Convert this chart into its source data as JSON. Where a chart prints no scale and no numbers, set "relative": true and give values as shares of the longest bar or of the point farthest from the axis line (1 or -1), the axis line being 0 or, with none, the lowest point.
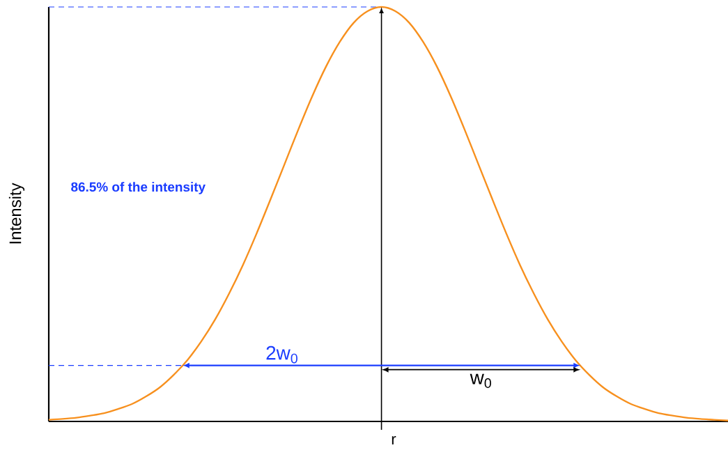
{
  "chart_data": {
    "type": "line",
    "relative": true,
    "xlabel": "r",
    "ylabel": "Intensity",
    "categories": [
      null,
      null,
      null,
      null,
      null,
      null,
      null,
      null,
      null,
      null,
      null,
      null,
      null,
      null,
      null,
      null,
      null,
      null,
      null,
      null,
      null,
      null,
      null,
      null,
      null,
      null,
      null,
      null,
      null,
      null,
      null,
      null,
      null,
      null,
      null,
      null,
      null,
      null,
      null,
      null,
      null,
      null,
      null,
      null,
      null,
      null,
      null,
      null,
      null,
      null
    ],
    "series": [
      {
        "color": "#f7901e",
        "values": [
          0.004,
          0.006,
          0.009,
          0.014,
          0.02,
          0.03,
          0.042,
          0.06,
          0.082,
          0.112,
          0.148,
          0.193,
          0.246,
          0.308,
          0.377,
          0.454,
          0.536,
          0.62,
          0.704,
          0.784,
          0.856,
          0.916,
          0.962,
          0.99,
          1,
          0.99,
          0.962,
          0.916,
          0.856,
          0.784,
          0.704,
          0.62,
          0.536,
          0.454,
          0.377,
          0.308,
          0.246,
          0.193,
          0.148,
          0.112,
          0.082,
          0.06,
          0.042,
          0.03,
          0.02,
          0.014,
          0.009,
          0.006,
          0.004,
          0.002
        ]
      }
    ],
    "ref_lines": [
      {
        "axis": "y",
        "value": 1,
        "color": "#1a3cff",
        "line_style": "dashed"
      },
      {
        "axis": "y",
        "value": 0.135,
        "color": "#1a3cff",
        "line_style": "dashed"
      }
    ],
    "annotations": [
      "86.5% of the intensity",
      "2w$_{0}$",
      "w$_{0}$"
    ]
  }
}
